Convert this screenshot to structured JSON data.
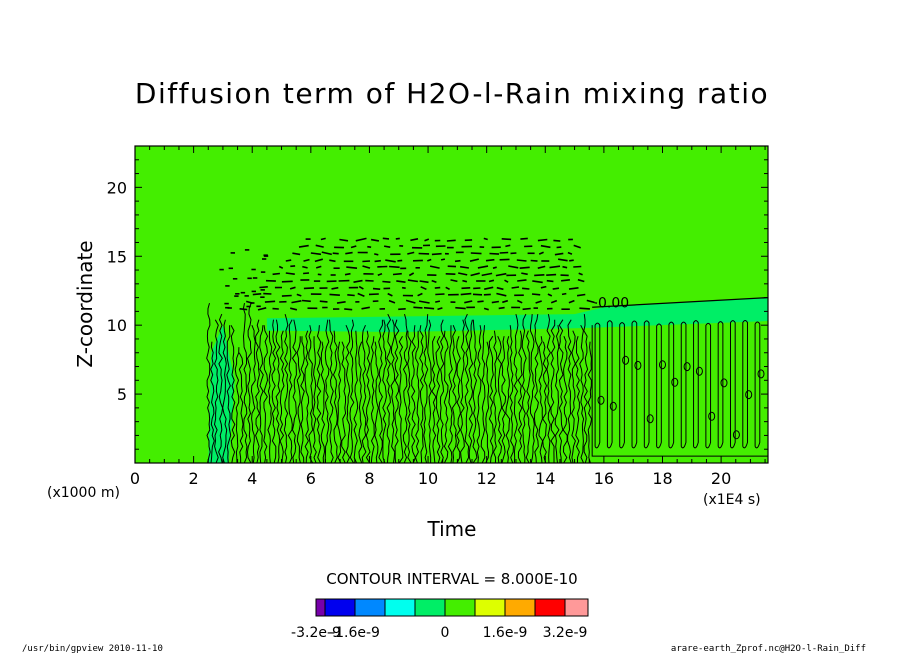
{
  "chart_data": {
    "type": "heatmap",
    "title": "Diffusion term of H2O-l-Rain mixing ratio",
    "xlabel": "Time",
    "ylabel": "Z-coordinate",
    "x_unit": "(x1E4 s)",
    "y_unit": "(x1000 m)",
    "xlim": [
      0,
      21.6
    ],
    "ylim": [
      0,
      23
    ],
    "x_ticks": [
      "0",
      "2",
      "4",
      "6",
      "8",
      "10",
      "12",
      "14",
      "16",
      "18",
      "20"
    ],
    "x_tick_values": [
      0,
      2,
      4,
      6,
      8,
      10,
      12,
      14,
      16,
      18,
      20
    ],
    "y_ticks": [
      "5",
      "10",
      "15",
      "20"
    ],
    "y_tick_values": [
      5,
      10,
      15,
      20
    ],
    "background_level_color": "#44ee00",
    "contour_label": "0.00",
    "contour_interval_text": "CONTOUR INTERVAL = 8.000E-10",
    "colorbar": {
      "colors": [
        "#7700aa",
        "#0000ee",
        "#0088ff",
        "#00ffee",
        "#00ee66",
        "#44ee00",
        "#ddff00",
        "#ffaa00",
        "#ff0000",
        "#ff9999"
      ],
      "labels": [
        "-3.2e-9",
        "-1.6e-9",
        "0",
        "1.6e-9",
        "3.2e-9"
      ]
    }
  },
  "footer": {
    "left": "/usr/bin/gpview   2010-11-10",
    "right": "arare-earth_Zprof.nc@H2O-l-Rain_Diff"
  }
}
